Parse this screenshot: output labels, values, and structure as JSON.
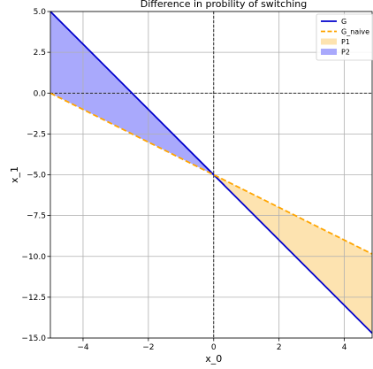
{
  "chart_data": {
    "type": "line",
    "title": "Difference in probility of switching",
    "xlabel": "x_0",
    "ylabel": "x_1",
    "xlim": [
      -5,
      4.85
    ],
    "ylim": [
      -15,
      5
    ],
    "x_ticks": [
      -4,
      -2,
      0,
      2,
      4
    ],
    "x_tick_labels": [
      "−4",
      "−2",
      "0",
      "2",
      "4"
    ],
    "y_ticks": [
      5,
      2.5,
      0,
      -2.5,
      -5,
      -7.5,
      -10,
      -12.5,
      -15
    ],
    "y_tick_labels": [
      "5.0",
      "2.5",
      "0.0",
      "−2.5",
      "−5.0",
      "−7.5",
      "−10.0",
      "−12.5",
      "−15.0"
    ],
    "grid": true,
    "reference_lines": {
      "x": 0,
      "y": 0,
      "style": "dashed",
      "color": "#000000"
    },
    "legend_position": "top-right",
    "series": [
      {
        "name": "G",
        "kind": "line",
        "style": "solid",
        "color": "#0000cc",
        "x": [
          -5,
          4.85
        ],
        "y": [
          5,
          -14.7
        ]
      },
      {
        "name": "G_naive",
        "kind": "line",
        "style": "dashed",
        "color": "#ffa500",
        "x": [
          -5,
          4.85
        ],
        "y": [
          0,
          -9.85
        ]
      }
    ],
    "fills": [
      {
        "name": "P1",
        "color": "#fde3b0",
        "x_range": [
          0,
          4.85
        ],
        "between": [
          "G",
          "G_naive"
        ]
      },
      {
        "name": "P2",
        "color": "#a9a9fc",
        "x_range": [
          -5,
          0
        ],
        "between": [
          "G",
          "G_naive"
        ]
      }
    ],
    "legend": [
      {
        "label": "G",
        "kind": "line",
        "style": "solid",
        "color": "#0000cc"
      },
      {
        "label": "G_naive",
        "kind": "line",
        "style": "dashed",
        "color": "#ffa500"
      },
      {
        "label": "P1",
        "kind": "patch",
        "color": "#fde3b0"
      },
      {
        "label": "P2",
        "kind": "patch",
        "color": "#a9a9fc"
      }
    ]
  }
}
